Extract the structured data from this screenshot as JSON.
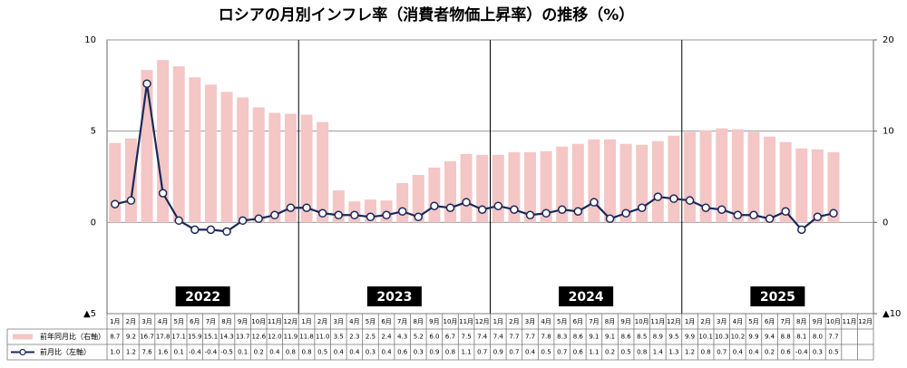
{
  "chart_data": {
    "type": "bar",
    "title": "ロシアの月別インフレ率（消費者物価上昇率）の推移（%）",
    "groups": [
      "2022",
      "2023",
      "2024",
      "2025"
    ],
    "categories": [
      "1月",
      "2月",
      "3月",
      "4月",
      "5月",
      "6月",
      "7月",
      "8月",
      "9月",
      "10月",
      "11月",
      "12月",
      "1月",
      "2月",
      "3月",
      "4月",
      "5月",
      "6月",
      "7月",
      "8月",
      "9月",
      "10月",
      "11月",
      "12月",
      "1月",
      "2月",
      "3月",
      "4月",
      "5月",
      "6月",
      "7月",
      "8月",
      "9月",
      "10月",
      "11月",
      "12月",
      "1月",
      "2月",
      "3月",
      "4月",
      "5月",
      "6月",
      "7月",
      "8月",
      "9月",
      "10月",
      "11月",
      "12月"
    ],
    "series": [
      {
        "name": "前年同月比（右軸）",
        "type": "bar",
        "axis": "y2",
        "color": "#f4c6c6",
        "values": [
          8.7,
          9.2,
          16.7,
          17.8,
          17.1,
          15.9,
          15.1,
          14.3,
          13.7,
          12.6,
          12.0,
          11.9,
          11.8,
          11.0,
          3.5,
          2.3,
          2.5,
          2.4,
          4.3,
          5.2,
          6.0,
          6.7,
          7.5,
          7.4,
          7.4,
          7.7,
          7.7,
          7.8,
          8.3,
          8.6,
          9.1,
          9.1,
          8.6,
          8.5,
          8.9,
          9.5,
          9.9,
          10.1,
          10.3,
          10.2,
          9.9,
          9.4,
          8.8,
          8.1,
          8.0,
          7.7,
          null,
          null
        ],
        "value_labels": [
          "8.7",
          "9.2",
          "16.7",
          "17.8",
          "17.1",
          "15.9",
          "15.1",
          "14.3",
          "13.7",
          "12.6",
          "12.0",
          "11.9",
          "11.8",
          "11.0",
          "3.5",
          "2.3",
          "2.5",
          "2.4",
          "4.3",
          "5.2",
          "6.0",
          "6.7",
          "7.5",
          "7.4",
          "7.4",
          "7.7",
          "7.7",
          "7.8",
          "8.3",
          "8.6",
          "9.1",
          "9.1",
          "8.6",
          "8.5",
          "8.9",
          "9.5",
          "9.9",
          "10.1",
          "10.3",
          "10.2",
          "9.9",
          "9.4",
          "8.8",
          "8.1",
          "8.0",
          "7.7",
          null,
          null
        ]
      },
      {
        "name": "前月比（左軸）",
        "type": "line",
        "axis": "y",
        "color": "#1b2a5a",
        "values": [
          1.0,
          1.2,
          7.6,
          1.6,
          0.1,
          -0.4,
          -0.4,
          -0.5,
          0.1,
          0.2,
          0.4,
          0.8,
          0.8,
          0.5,
          0.4,
          0.4,
          0.3,
          0.4,
          0.6,
          0.3,
          0.9,
          0.8,
          1.1,
          0.7,
          0.9,
          0.7,
          0.4,
          0.5,
          0.7,
          0.6,
          1.1,
          0.2,
          0.5,
          0.8,
          1.4,
          1.3,
          1.2,
          0.8,
          0.7,
          0.4,
          0.4,
          0.2,
          0.6,
          -0.4,
          0.3,
          0.5,
          null,
          null
        ],
        "value_labels": [
          "1.0",
          "1.2",
          "7.6",
          "1.6",
          "0.1",
          "-0.4",
          "-0.4",
          "-0.5",
          "0.1",
          "0.2",
          "0.4",
          "0.8",
          "0.8",
          "0.5",
          "0.4",
          "0.4",
          "0.3",
          "0.4",
          "0.6",
          "0.3",
          "0.9",
          "0.8",
          "1.1",
          "0.7",
          "0.9",
          "0.7",
          "0.4",
          "0.5",
          "0.7",
          "0.6",
          "1.1",
          "0.2",
          "0.5",
          "0.8",
          "1.4",
          "1.3",
          "1.2",
          "0.8",
          "0.7",
          "0.4",
          "0.4",
          "0.2",
          "0.6",
          "-0.4",
          "0.3",
          "0.5",
          null,
          null
        ]
      }
    ],
    "ylim": [
      -5,
      10
    ],
    "yticks": [
      {
        "value": -5,
        "label": "▲5"
      },
      0,
      5,
      10
    ],
    "y2lim": [
      -10,
      20
    ],
    "y2ticks": [
      {
        "value": -10,
        "label": "▲10"
      },
      0,
      10,
      20
    ],
    "grid": true
  }
}
